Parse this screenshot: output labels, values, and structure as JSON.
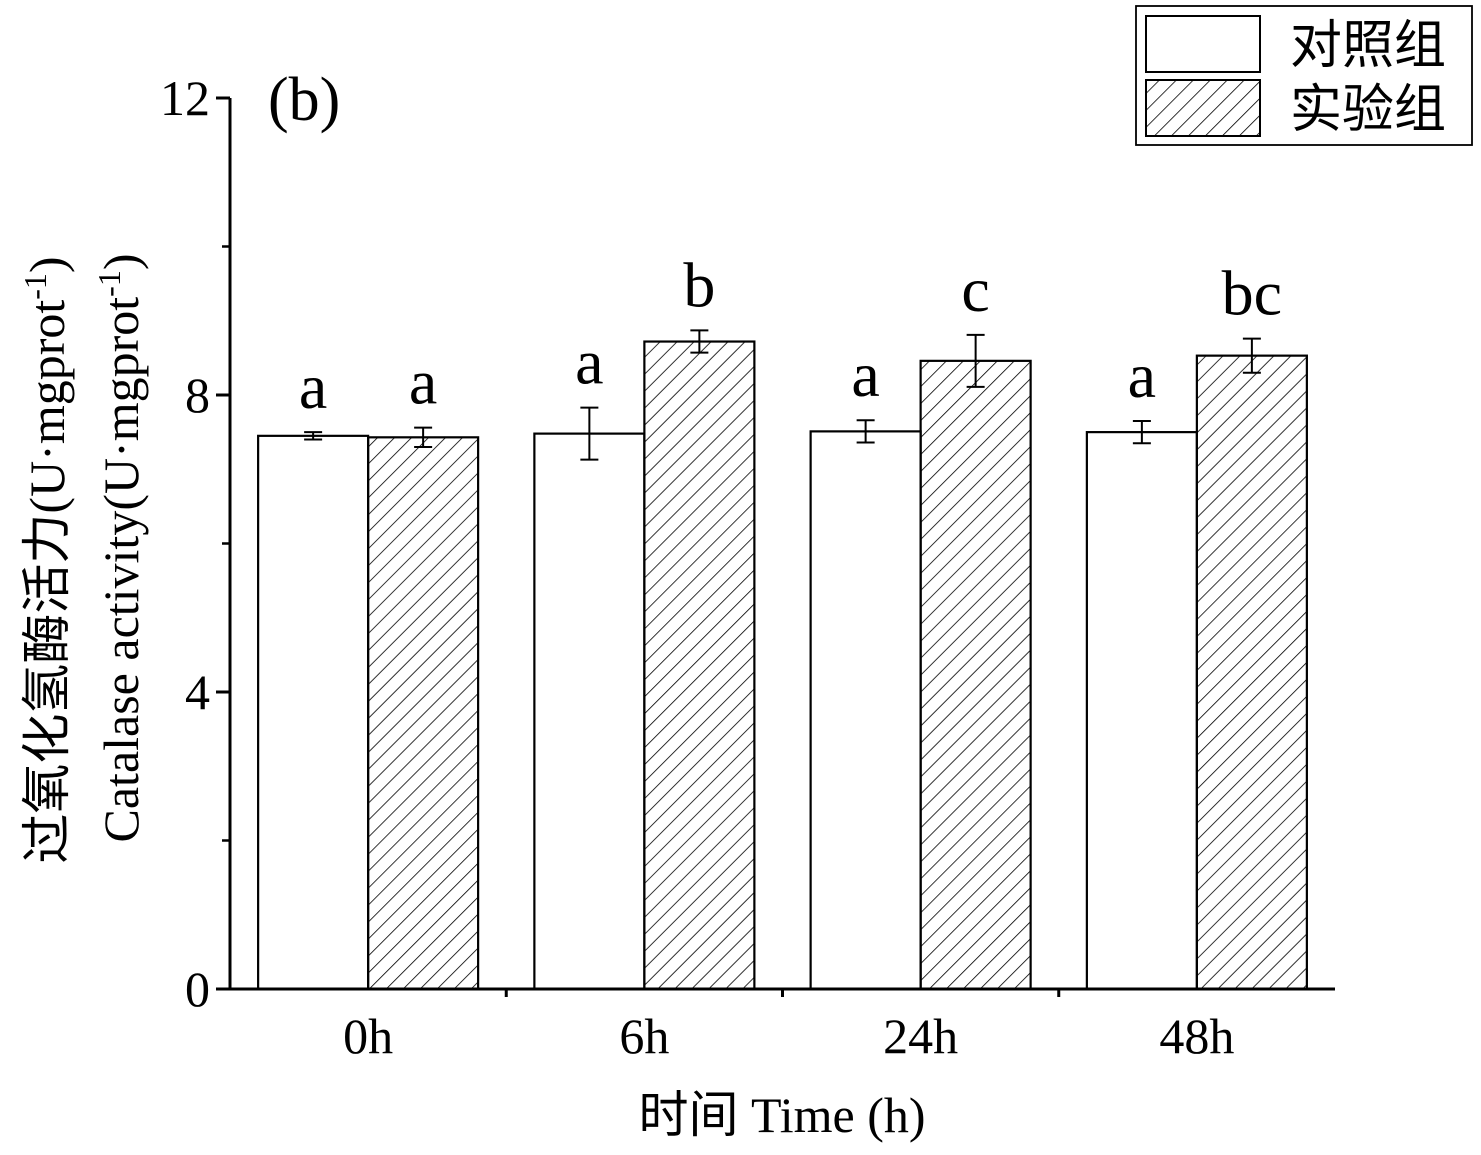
{
  "panel_label": "(b)",
  "chart_data": {
    "type": "bar",
    "categories": [
      "0h",
      "6h",
      "24h",
      "48h"
    ],
    "series": [
      {
        "name": "对照组",
        "values": [
          7.45,
          7.48,
          7.51,
          7.5
        ],
        "errors": [
          0.05,
          0.35,
          0.15,
          0.15
        ],
        "letters": [
          "a",
          "a",
          "a",
          "a"
        ],
        "fill": "#ffffff",
        "pattern": "none"
      },
      {
        "name": "实验组",
        "values": [
          7.43,
          8.72,
          8.46,
          8.53
        ],
        "errors": [
          0.13,
          0.15,
          0.35,
          0.23
        ],
        "letters": [
          "a",
          "b",
          "c",
          "bc"
        ],
        "fill": "#ffffff",
        "pattern": "diagonal-hatch"
      }
    ],
    "xlabel": "时间 Time (h)",
    "ylabel_cn": "过氧化氢酶活力(U·mgprot",
    "ylabel_en": "Catalase activity(U·mgprot",
    "ylabel_superscript": "-1",
    "ylabel_close": ")",
    "ylim": [
      0,
      12
    ],
    "yticks": [
      0,
      4,
      8,
      12
    ],
    "ytick_labels": [
      "0",
      "4",
      "8",
      "12"
    ],
    "grid": false,
    "legend_position": "top-right"
  }
}
